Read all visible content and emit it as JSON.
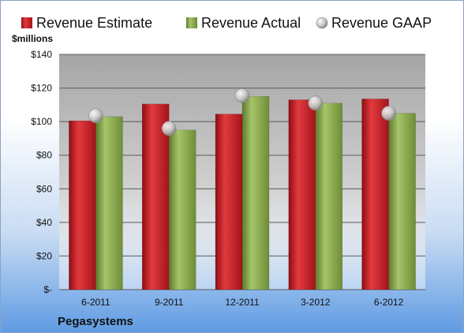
{
  "chart_data": {
    "type": "bar",
    "title": "",
    "ylabel": "$millions",
    "xlabel": "",
    "company": "Pegasystems",
    "categories": [
      "6-2011",
      "9-2011",
      "12-2011",
      "3-2012",
      "6-2012"
    ],
    "series": [
      {
        "name": "Revenue Estimate",
        "kind": "bar",
        "color": "#c8202a",
        "values": [
          100.5,
          110.5,
          104.5,
          113.0,
          113.5
        ]
      },
      {
        "name": "Revenue Actual",
        "kind": "bar",
        "color": "#8fae4e",
        "values": [
          103.0,
          95.0,
          115.0,
          111.0,
          105.0
        ]
      },
      {
        "name": "Revenue GAAP",
        "kind": "marker",
        "color": "#c9c9c9",
        "values": [
          103.5,
          96.0,
          115.5,
          111.0,
          105.0
        ]
      }
    ],
    "ylim": [
      0,
      140
    ],
    "yticks": [
      0,
      20,
      40,
      60,
      80,
      100,
      120,
      140
    ],
    "ytick_labels": [
      "$-",
      "$20",
      "$40",
      "$60",
      "$80",
      "$100",
      "$120",
      "$140"
    ],
    "grid": true,
    "legend_position": "top"
  }
}
